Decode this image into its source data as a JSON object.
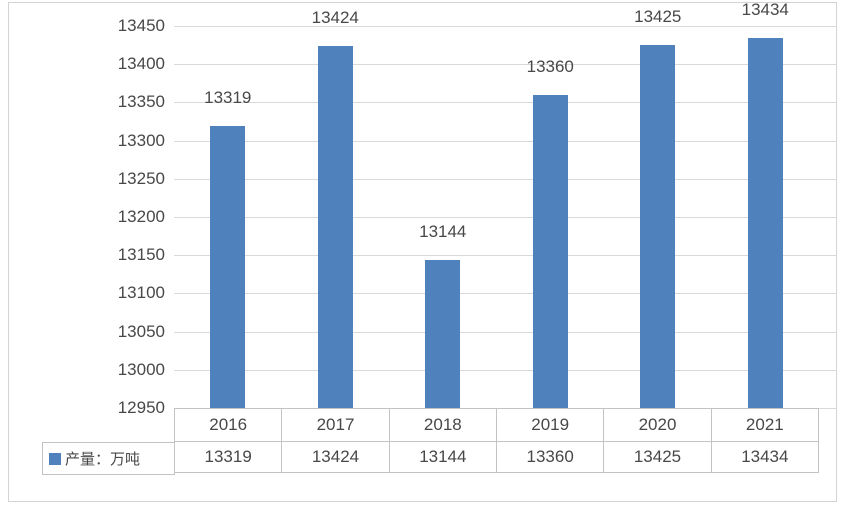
{
  "chart_data": {
    "type": "bar",
    "title": "",
    "categories": [
      "2016",
      "2017",
      "2018",
      "2019",
      "2020",
      "2021"
    ],
    "series": [
      {
        "name": "产量：万吨",
        "values": [
          13319,
          13424,
          13144,
          13360,
          13425,
          13434
        ]
      }
    ],
    "xlabel": "",
    "ylabel": "",
    "ylim": [
      12950,
      13450
    ],
    "ytick_step": 50,
    "yticks": [
      13450,
      13400,
      13350,
      13300,
      13250,
      13200,
      13150,
      13100,
      13050,
      13000,
      12950
    ],
    "grid": true,
    "data_labels": true,
    "legend_position": "bottom-data-table-left"
  },
  "legend": {
    "label": "产量：万吨"
  },
  "colors": {
    "bar": "#4F81BD",
    "grid": "#D9D9D9",
    "table_border": "#C4C2C2",
    "text": "#484848",
    "frame": "#D5D3D3"
  }
}
